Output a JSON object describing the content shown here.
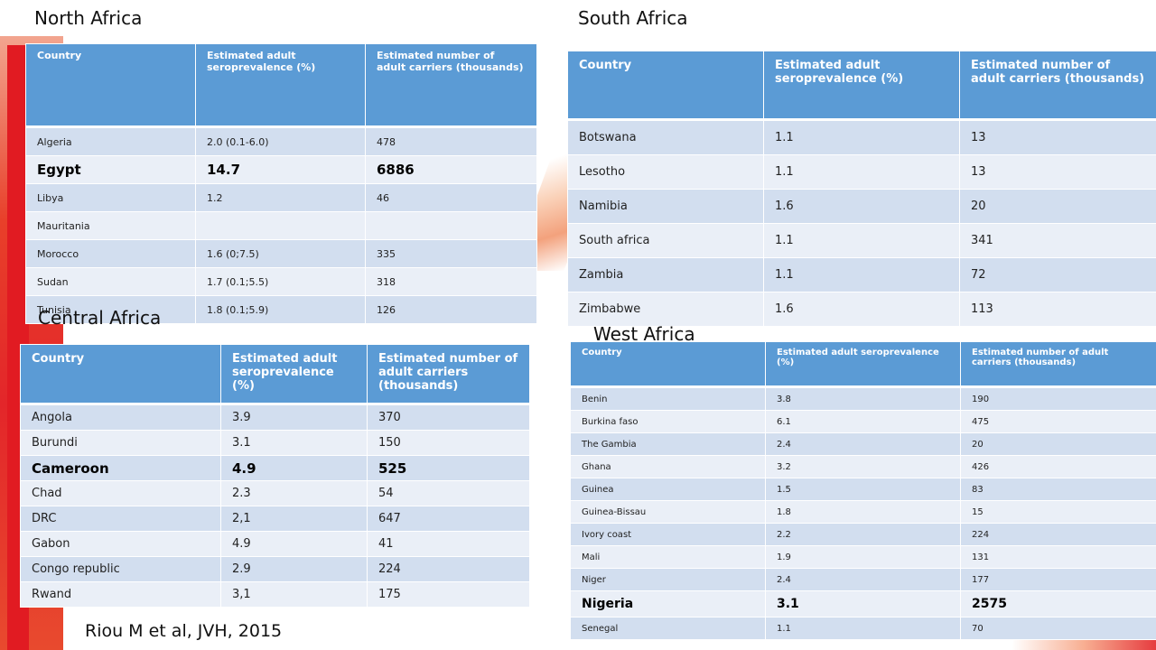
{
  "citation": "Riou M et al, JVH, 2015",
  "headers": {
    "country": "Country",
    "seroprevalence": "Estimated adult seroprevalence (%)",
    "carriers": "Estimated number of adult carriers (thousands)"
  },
  "north": {
    "title": "North Africa",
    "rows": [
      {
        "country": "Algeria",
        "prev": "2.0 (0.1-6.0)",
        "carriers": "478"
      },
      {
        "country": "Egypt",
        "prev": "14.7",
        "carriers": "6886"
      },
      {
        "country": "Libya",
        "prev": "1.2",
        "carriers": "46"
      },
      {
        "country": "Mauritania",
        "prev": "",
        "carriers": ""
      },
      {
        "country": "Morocco",
        "prev": "1.6 (0;7.5)",
        "carriers": "335"
      },
      {
        "country": "Sudan",
        "prev": "1.7 (0.1;5.5)",
        "carriers": "318"
      },
      {
        "country": "Tunisia",
        "prev": "1.8 (0.1;5.9)",
        "carriers": "126"
      }
    ]
  },
  "south": {
    "title": "South Africa",
    "rows": [
      {
        "country": "Botswana",
        "prev": "1.1",
        "carriers": "13"
      },
      {
        "country": "Lesotho",
        "prev": "1.1",
        "carriers": "13"
      },
      {
        "country": "Namibia",
        "prev": "1.6",
        "carriers": "20"
      },
      {
        "country": "South africa",
        "prev": "1.1",
        "carriers": "341"
      },
      {
        "country": "Zambia",
        "prev": "1.1",
        "carriers": "72"
      },
      {
        "country": "Zimbabwe",
        "prev": "1.6",
        "carriers": "113"
      }
    ]
  },
  "central": {
    "title": "Central Africa",
    "rows": [
      {
        "country": "Angola",
        "prev": "3.9",
        "carriers": "370"
      },
      {
        "country": "Burundi",
        "prev": "3.1",
        "carriers": "150"
      },
      {
        "country": "Cameroon",
        "prev": "4.9",
        "carriers": "525"
      },
      {
        "country": "Chad",
        "prev": "2.3",
        "carriers": "54"
      },
      {
        "country": "DRC",
        "prev": "2,1",
        "carriers": "647"
      },
      {
        "country": "Gabon",
        "prev": "4.9",
        "carriers": "41"
      },
      {
        "country": "Congo republic",
        "prev": "2.9",
        "carriers": "224"
      },
      {
        "country": "Rwand",
        "prev": "3,1",
        "carriers": "175"
      }
    ]
  },
  "west": {
    "title": "West Africa",
    "rows": [
      {
        "country": "Benin",
        "prev": "3.8",
        "carriers": "190"
      },
      {
        "country": "Burkina faso",
        "prev": "6.1",
        "carriers": "475"
      },
      {
        "country": "The Gambia",
        "prev": "2.4",
        "carriers": "20"
      },
      {
        "country": "Ghana",
        "prev": "3.2",
        "carriers": "426"
      },
      {
        "country": "Guinea",
        "prev": "1.5",
        "carriers": "83"
      },
      {
        "country": "Guinea-Bissau",
        "prev": "1.8",
        "carriers": "15"
      },
      {
        "country": "Ivory coast",
        "prev": "2.2",
        "carriers": "224"
      },
      {
        "country": "Mali",
        "prev": "1.9",
        "carriers": "131"
      },
      {
        "country": "Niger",
        "prev": "2.4",
        "carriers": "177"
      },
      {
        "country": "Nigeria",
        "prev": "3.1",
        "carriers": "2575"
      },
      {
        "country": "Senegal",
        "prev": "1.1",
        "carriers": "70"
      }
    ]
  }
}
